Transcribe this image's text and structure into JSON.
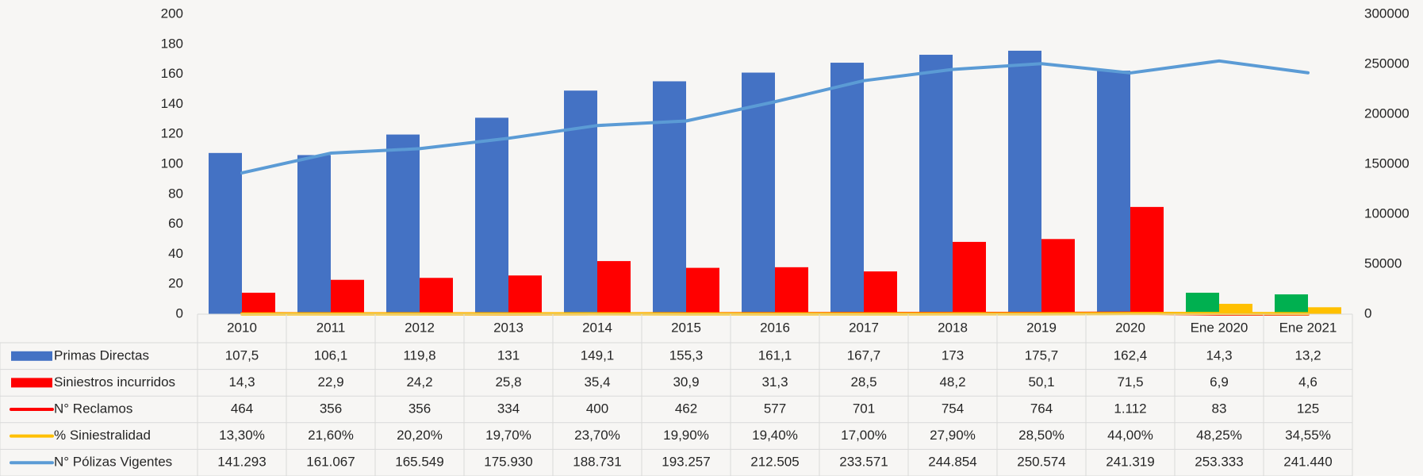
{
  "chart_data": {
    "type": "bar",
    "categories": [
      "2010",
      "2011",
      "2012",
      "2013",
      "2014",
      "2015",
      "2016",
      "2017",
      "2018",
      "2019",
      "2020",
      "Ene 2020",
      "Ene 2021"
    ],
    "ylim": [
      0,
      200
    ],
    "yticks": [
      0,
      20,
      40,
      60,
      80,
      100,
      120,
      140,
      160,
      180,
      200
    ],
    "y2lim": [
      0,
      300000
    ],
    "y2ticks": [
      0,
      50000,
      100000,
      150000,
      200000,
      250000,
      300000
    ],
    "series": [
      {
        "name": "Primas Directas",
        "kind": "bar",
        "axis": "y",
        "color": "#4472c4",
        "colors": [
          "#4472c4",
          "#4472c4",
          "#4472c4",
          "#4472c4",
          "#4472c4",
          "#4472c4",
          "#4472c4",
          "#4472c4",
          "#4472c4",
          "#4472c4",
          "#4472c4",
          "#00b050",
          "#00b050"
        ],
        "values": [
          107.5,
          106.1,
          119.8,
          131,
          149.1,
          155.3,
          161.1,
          167.7,
          173,
          175.7,
          162.4,
          14.3,
          13.2
        ],
        "value_labels": [
          "107,5",
          "106,1",
          "119,8",
          "131",
          "149,1",
          "155,3",
          "161,1",
          "167,7",
          "173",
          "175,7",
          "162,4",
          "14,3",
          "13,2"
        ]
      },
      {
        "name": "Siniestros incurridos",
        "kind": "bar",
        "axis": "y",
        "color": "#ff0000",
        "colors": [
          "#ff0000",
          "#ff0000",
          "#ff0000",
          "#ff0000",
          "#ff0000",
          "#ff0000",
          "#ff0000",
          "#ff0000",
          "#ff0000",
          "#ff0000",
          "#ff0000",
          "#ffc000",
          "#ffc000"
        ],
        "values": [
          14.3,
          22.9,
          24.2,
          25.8,
          35.4,
          30.9,
          31.3,
          28.5,
          48.2,
          50.1,
          71.5,
          6.9,
          4.6
        ],
        "value_labels": [
          "14,3",
          "22,9",
          "24,2",
          "25,8",
          "35,4",
          "30,9",
          "31,3",
          "28,5",
          "48,2",
          "50,1",
          "71,5",
          "6,9",
          "4,6"
        ]
      },
      {
        "name": "N° Reclamos",
        "kind": "line",
        "axis": "y2",
        "color": "#ff0000",
        "values": [
          464,
          356,
          356,
          334,
          400,
          462,
          577,
          701,
          754,
          764,
          1112,
          83,
          125
        ],
        "value_labels": [
          "464",
          "356",
          "356",
          "334",
          "400",
          "462",
          "577",
          "701",
          "754",
          "764",
          "1.112",
          "83",
          "125"
        ]
      },
      {
        "name": "% Siniestralidad",
        "kind": "line",
        "axis": "y",
        "color": "#ffc000",
        "values": [
          0.133,
          0.216,
          0.202,
          0.197,
          0.237,
          0.199,
          0.194,
          0.17,
          0.279,
          0.285,
          0.44,
          0.4825,
          0.3455
        ],
        "value_labels": [
          "13,30%",
          "21,60%",
          "20,20%",
          "19,70%",
          "23,70%",
          "19,90%",
          "19,40%",
          "17,00%",
          "27,90%",
          "28,50%",
          "44,00%",
          "48,25%",
          "34,55%"
        ]
      },
      {
        "name": "N° Pólizas Vigentes",
        "kind": "line",
        "axis": "y2",
        "color": "#5b9bd5",
        "values": [
          141293,
          161067,
          165549,
          175930,
          188731,
          193257,
          212505,
          233571,
          244854,
          250574,
          241319,
          253333,
          241440
        ],
        "value_labels": [
          "141.293",
          "161.067",
          "165.549",
          "175.930",
          "188.731",
          "193.257",
          "212.505",
          "233.571",
          "244.854",
          "250.574",
          "241.319",
          "253.333",
          "241.440"
        ]
      }
    ]
  }
}
